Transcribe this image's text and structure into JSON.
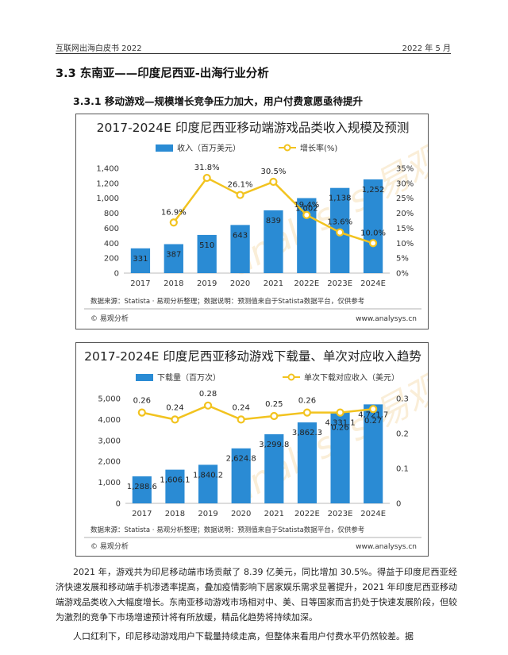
{
  "header": {
    "left": "互联网出海白皮书 2022",
    "right": "2022 年 5 月"
  },
  "section": {
    "h2": "3.3 东南亚——印度尼西亚-出海行业分析",
    "h3": "3.3.1  移动游戏—规模增长竞争压力加大，用户付费意愿亟待提升"
  },
  "watermark": "analysys 易观分析",
  "chart_data": [
    {
      "type": "bar+line",
      "title": "2017-2024E 印度尼西亚移动端游戏品类收入规模及预测",
      "categories": [
        "2017",
        "2018",
        "2019",
        "2020",
        "2021",
        "2022E",
        "2023E",
        "2024E"
      ],
      "series": [
        {
          "name": "收入（百万美元）",
          "type": "bar",
          "axis": "left",
          "color": "#2a8bd4",
          "values": [
            331,
            387,
            510,
            643,
            839,
            1002,
            1138,
            1252
          ],
          "labels": [
            "331",
            "387",
            "510",
            "643",
            "839",
            "1,002",
            "1,138",
            "1,252"
          ]
        },
        {
          "name": "增长率(%)",
          "type": "line",
          "axis": "right",
          "color": "#f2c31f",
          "values": [
            null,
            16.9,
            31.8,
            26.1,
            30.5,
            19.4,
            13.6,
            10.0
          ],
          "labels": [
            "",
            "16.9%",
            "31.8%",
            "26.1%",
            "30.5%",
            "19.4%",
            "13.6%",
            "10.0%"
          ]
        }
      ],
      "left_axis": {
        "min": 0,
        "max": 1400,
        "step": 200,
        "ticks": [
          "0",
          "200",
          "400",
          "600",
          "800",
          "1,000",
          "1,200",
          "1,400"
        ]
      },
      "right_axis": {
        "min": 0,
        "max": 35,
        "step": 5,
        "ticks": [
          "0%",
          "5%",
          "10%",
          "15%",
          "20%",
          "25%",
          "30%",
          "35%"
        ]
      },
      "legend_position": "top",
      "source": "数据来源：Statista · 易观分析整理；数据说明：预测值来自于Statista数据平台，仅供参考",
      "footer_left": "© 易观分析",
      "footer_right": "www.analysys.cn"
    },
    {
      "type": "bar+line",
      "title": "2017-2024E 印度尼西亚移动游戏下载量、单次对应收入趋势",
      "categories": [
        "2017",
        "2018",
        "2019",
        "2020",
        "2021",
        "2022E",
        "2023E",
        "2024E"
      ],
      "series": [
        {
          "name": "下载量（百万次）",
          "type": "bar",
          "axis": "left",
          "color": "#2a8bd4",
          "values": [
            1288.6,
            1606.1,
            1840.2,
            2624.8,
            3299.8,
            3862.3,
            4331.1,
            4721.7
          ],
          "labels": [
            "1,288.6",
            "1,606.1",
            "1,840.2",
            "2,624.8",
            "3,299.8",
            "3,862.3",
            "4,331.1",
            "4,721.7"
          ]
        },
        {
          "name": "单次下载对应收入（美元）",
          "type": "line",
          "axis": "right",
          "color": "#f2c31f",
          "values": [
            0.26,
            0.24,
            0.28,
            0.24,
            0.25,
            0.26,
            0.26,
            0.27
          ],
          "labels": [
            "0.26",
            "0.24",
            "0.28",
            "0.24",
            "0.25",
            "0.26",
            "0.26",
            "0.27"
          ]
        }
      ],
      "left_axis": {
        "min": 0,
        "max": 5000,
        "step": 1000,
        "ticks": [
          "0",
          "1,000",
          "2,000",
          "3,000",
          "4,000",
          "5,000"
        ]
      },
      "right_axis": {
        "min": 0,
        "max": 0.3,
        "step": 0.1,
        "ticks": [
          "0",
          "0.1",
          "0.2",
          "0.3"
        ]
      },
      "legend_position": "top",
      "source": "数据来源：Statista · 易观分析整理；数据说明：预测值来自于Statista数据平台，仅供参考",
      "footer_left": "© 易观分析",
      "footer_right": "www.analysys.cn"
    }
  ],
  "body": {
    "p1": "2021 年，游戏共为印尼移动端市场贡献了 8.39 亿美元，同比增加 30.5%。得益于印度尼西亚经济快速发展和移动端手机渗透率提高，叠加疫情影响下居家娱乐需求显著提升，2021 年印度尼西亚移动端游戏品类收入大幅度增长。东南亚移动游戏市场相对中、美、日等国家而言扔处于快速发展阶段，但较为激烈的竞争下市场增速预计将有所放缓，精品化趋势将持续加深。",
    "p2": "人口红利下，印尼移动游戏用户下载量持续走高，但整体来看用户付费水平仍然较差。据"
  }
}
